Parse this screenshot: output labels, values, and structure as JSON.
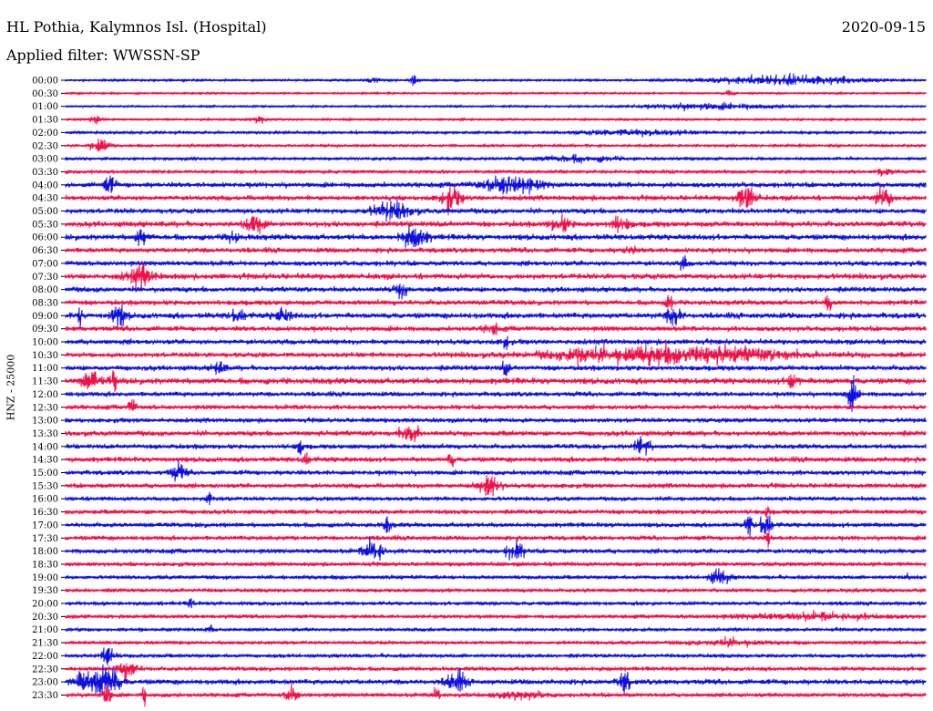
{
  "header": {
    "station": "HL Pothia, Kalymnos Isl. (Hospital)",
    "date": "2020-09-15",
    "filter": "Applied filter: WWSSN-SP"
  },
  "y_axis_label": "HNZ - 25000",
  "colors": {
    "trace_a": "#1010e0",
    "trace_b": "#f0104a",
    "background": "#ffffff",
    "text": "#000000"
  },
  "rows": [
    {
      "time": "00:00",
      "color": "blue",
      "noise": 0.9,
      "events": [
        [
          410,
          3,
          7
        ],
        [
          455,
          6,
          5
        ],
        [
          865,
          5,
          80
        ]
      ]
    },
    {
      "time": "00:30",
      "color": "red",
      "noise": 0.8,
      "events": [
        [
          800,
          3,
          5
        ]
      ]
    },
    {
      "time": "01:00",
      "color": "blue",
      "noise": 0.8,
      "events": [
        [
          780,
          3,
          80
        ]
      ]
    },
    {
      "time": "01:30",
      "color": "red",
      "noise": 0.9,
      "events": [
        [
          105,
          5,
          6
        ],
        [
          285,
          4,
          6
        ]
      ]
    },
    {
      "time": "02:00",
      "color": "blue",
      "noise": 1.2,
      "events": [
        [
          700,
          3,
          60
        ]
      ]
    },
    {
      "time": "02:30",
      "color": "red",
      "noise": 1.2,
      "events": [
        [
          110,
          8,
          10
        ]
      ]
    },
    {
      "time": "03:00",
      "color": "blue",
      "noise": 1.3,
      "events": [
        [
          630,
          3,
          50
        ]
      ]
    },
    {
      "time": "03:30",
      "color": "red",
      "noise": 1.5,
      "events": [
        [
          970,
          5,
          8
        ]
      ]
    },
    {
      "time": "04:00",
      "color": "blue",
      "noise": 2.5,
      "events": [
        [
          120,
          8,
          6
        ],
        [
          560,
          8,
          30
        ]
      ]
    },
    {
      "time": "04:30",
      "color": "red",
      "noise": 2.5,
      "events": [
        [
          495,
          12,
          10
        ],
        [
          820,
          12,
          10
        ],
        [
          970,
          10,
          10
        ]
      ]
    },
    {
      "time": "05:00",
      "color": "blue",
      "noise": 2.5,
      "events": [
        [
          430,
          8,
          20
        ]
      ]
    },
    {
      "time": "05:30",
      "color": "red",
      "noise": 2.8,
      "events": [
        [
          280,
          9,
          10
        ],
        [
          615,
          7,
          10
        ],
        [
          680,
          6,
          10
        ]
      ]
    },
    {
      "time": "06:00",
      "color": "blue",
      "noise": 2.8,
      "events": [
        [
          155,
          9,
          6
        ],
        [
          255,
          6,
          6
        ],
        [
          455,
          12,
          12
        ]
      ]
    },
    {
      "time": "06:30",
      "color": "red",
      "noise": 2.5,
      "events": [
        [
          690,
          5,
          6
        ]
      ]
    },
    {
      "time": "07:00",
      "color": "blue",
      "noise": 2.5,
      "events": [
        [
          750,
          6,
          4
        ]
      ]
    },
    {
      "time": "07:30",
      "color": "red",
      "noise": 2.8,
      "events": [
        [
          155,
          9,
          14
        ]
      ]
    },
    {
      "time": "08:00",
      "color": "blue",
      "noise": 2.5,
      "events": [
        [
          440,
          6,
          8
        ]
      ]
    },
    {
      "time": "08:30",
      "color": "red",
      "noise": 2.5,
      "events": [
        [
          735,
          10,
          3
        ],
        [
          910,
          12,
          3
        ]
      ]
    },
    {
      "time": "09:00",
      "color": "blue",
      "noise": 2.8,
      "events": [
        [
          88,
          12,
          2
        ],
        [
          130,
          10,
          8
        ],
        [
          260,
          6,
          8
        ],
        [
          310,
          6,
          10
        ],
        [
          740,
          10,
          8
        ]
      ]
    },
    {
      "time": "09:30",
      "color": "red",
      "noise": 2.5,
      "events": [
        [
          540,
          5,
          8
        ]
      ]
    },
    {
      "time": "10:00",
      "color": "blue",
      "noise": 2.5,
      "events": [
        [
          555,
          7,
          4
        ]
      ]
    },
    {
      "time": "10:30",
      "color": "red",
      "noise": 2.5,
      "events": [
        [
          635,
          8,
          8
        ],
        [
          740,
          8,
          120
        ]
      ]
    },
    {
      "time": "11:00",
      "color": "blue",
      "noise": 2.5,
      "events": [
        [
          240,
          7,
          6
        ],
        [
          555,
          7,
          4
        ]
      ]
    },
    {
      "time": "11:30",
      "color": "red",
      "noise": 3.0,
      "events": [
        [
          100,
          8,
          10
        ],
        [
          125,
          9,
          4
        ],
        [
          870,
          9,
          6
        ]
      ]
    },
    {
      "time": "12:00",
      "color": "blue",
      "noise": 2.3,
      "events": [
        [
          935,
          14,
          6
        ]
      ]
    },
    {
      "time": "12:30",
      "color": "red",
      "noise": 2.3,
      "events": [
        [
          145,
          7,
          4
        ]
      ]
    },
    {
      "time": "13:00",
      "color": "blue",
      "noise": 2.2,
      "events": []
    },
    {
      "time": "13:30",
      "color": "red",
      "noise": 2.5,
      "events": [
        [
          450,
          10,
          10
        ]
      ]
    },
    {
      "time": "14:00",
      "color": "blue",
      "noise": 2.3,
      "events": [
        [
          330,
          7,
          4
        ],
        [
          705,
          10,
          8
        ]
      ]
    },
    {
      "time": "14:30",
      "color": "red",
      "noise": 2.5,
      "events": [
        [
          335,
          6,
          4
        ],
        [
          495,
          8,
          3
        ]
      ]
    },
    {
      "time": "15:00",
      "color": "blue",
      "noise": 2.3,
      "events": [
        [
          195,
          8,
          8
        ]
      ]
    },
    {
      "time": "15:30",
      "color": "red",
      "noise": 2.3,
      "events": [
        [
          535,
          11,
          12
        ]
      ]
    },
    {
      "time": "16:00",
      "color": "blue",
      "noise": 2.0,
      "events": [
        [
          230,
          6,
          4
        ]
      ]
    },
    {
      "time": "16:30",
      "color": "red",
      "noise": 2.2,
      "events": [
        [
          842,
          14,
          2
        ]
      ]
    },
    {
      "time": "17:00",
      "color": "blue",
      "noise": 2.2,
      "events": [
        [
          425,
          8,
          4
        ],
        [
          822,
          10,
          4
        ],
        [
          840,
          14,
          6
        ]
      ]
    },
    {
      "time": "17:30",
      "color": "red",
      "noise": 2.2,
      "events": [
        [
          843,
          12,
          2
        ]
      ]
    },
    {
      "time": "18:00",
      "color": "blue",
      "noise": 2.3,
      "events": [
        [
          410,
          12,
          10
        ],
        [
          565,
          8,
          10
        ]
      ]
    },
    {
      "time": "18:30",
      "color": "red",
      "noise": 2.0,
      "events": []
    },
    {
      "time": "19:00",
      "color": "blue",
      "noise": 1.8,
      "events": [
        [
          790,
          8,
          10
        ],
        [
          995,
          6,
          2
        ]
      ]
    },
    {
      "time": "19:30",
      "color": "red",
      "noise": 1.8,
      "events": []
    },
    {
      "time": "20:00",
      "color": "blue",
      "noise": 1.8,
      "events": [
        [
          210,
          5,
          4
        ]
      ]
    },
    {
      "time": "20:30",
      "color": "red",
      "noise": 1.8,
      "events": [
        [
          890,
          3,
          80
        ]
      ]
    },
    {
      "time": "21:00",
      "color": "blue",
      "noise": 1.5,
      "events": [
        [
          230,
          4,
          4
        ]
      ]
    },
    {
      "time": "21:30",
      "color": "red",
      "noise": 1.6,
      "events": [
        [
          800,
          3,
          40
        ]
      ]
    },
    {
      "time": "22:00",
      "color": "blue",
      "noise": 1.8,
      "events": [
        [
          118,
          12,
          6
        ]
      ]
    },
    {
      "time": "22:30",
      "color": "red",
      "noise": 2.0,
      "events": [
        [
          140,
          10,
          10
        ]
      ]
    },
    {
      "time": "23:00",
      "color": "blue",
      "noise": 2.5,
      "events": [
        [
          95,
          10,
          14
        ],
        [
          118,
          18,
          12
        ],
        [
          500,
          10,
          10
        ],
        [
          685,
          12,
          6
        ]
      ]
    },
    {
      "time": "23:30",
      "color": "red",
      "noise": 2.0,
      "events": [
        [
          118,
          12,
          4
        ],
        [
          158,
          10,
          2
        ],
        [
          320,
          9,
          6
        ],
        [
          480,
          8,
          4
        ],
        [
          570,
          3,
          30
        ]
      ]
    }
  ]
}
